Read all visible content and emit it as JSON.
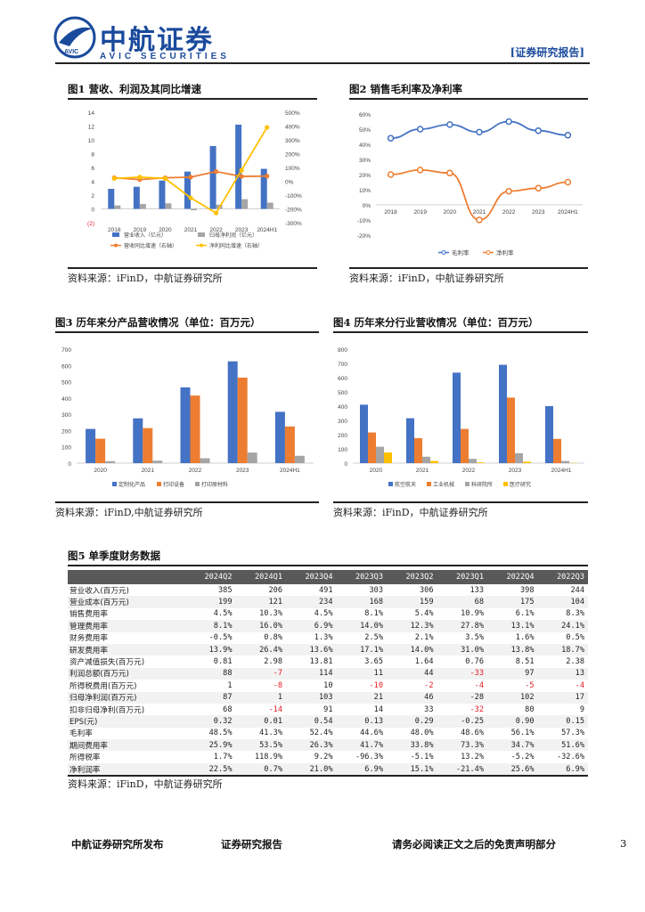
{
  "header": {
    "brand_cn": "中航证券",
    "brand_en": "AVIC SECURITIES",
    "logo_text": "AVIC",
    "report_tag": "[证券研究报告]"
  },
  "figure1": {
    "title": "图1 营收、利润及其同比增速",
    "source": "资料来源：iFinD，中航证券研究所",
    "chart_data": {
      "type": "bar",
      "categories": [
        "2018",
        "2019",
        "2020",
        "2021",
        "2022",
        "2023",
        "2024H1"
      ],
      "series": [
        {
          "name": "营业收入（亿元）",
          "kind": "bar",
          "axis": "left",
          "color": "#4472c4",
          "values": [
            2.9,
            3.2,
            4.1,
            5.4,
            9.1,
            12.2,
            5.8
          ]
        },
        {
          "name": "归母净利润（亿元）",
          "kind": "bar",
          "axis": "left",
          "color": "#a5a5a5",
          "values": [
            0.5,
            0.7,
            0.8,
            -0.2,
            0.6,
            1.4,
            0.9
          ]
        },
        {
          "name": "营收同比增速（右轴）",
          "kind": "line",
          "axis": "right",
          "color": "#ed7d31",
          "values": [
            25,
            12,
            25,
            30,
            70,
            35,
            37
          ]
        },
        {
          "name": "净利同比增速（右轴）",
          "kind": "line",
          "axis": "right",
          "color": "#ffc000",
          "values": [
            20,
            30,
            20,
            -120,
            -230,
            80,
            390
          ]
        }
      ],
      "yticks_left": [
        "14",
        "12",
        "10",
        "8",
        "6",
        "4",
        "2",
        "0",
        "(2)"
      ],
      "yticks_right": [
        "500%",
        "400%",
        "300%",
        "200%",
        "100%",
        "0%",
        "-100%",
        "-200%",
        "-300%"
      ],
      "ylim_left": [
        -2,
        14
      ],
      "ylim_right": [
        -300,
        500
      ]
    }
  },
  "figure2": {
    "title": "图2 销售毛利率及净利率",
    "source": "资料来源：iFinD，中航证券研究所",
    "chart_data": {
      "type": "line",
      "categories": [
        "2018",
        "2019",
        "2020",
        "2021",
        "2022",
        "2023",
        "2024H1"
      ],
      "series": [
        {
          "name": "毛利率",
          "color": "#4472c4",
          "values": [
            44,
            50,
            53,
            48,
            55,
            49,
            46
          ]
        },
        {
          "name": "净利率",
          "color": "#ed7d31",
          "values": [
            20,
            23,
            21,
            -10,
            9,
            11,
            15
          ]
        }
      ],
      "yticks": [
        "60%",
        "50%",
        "40%",
        "30%",
        "20%",
        "10%",
        "0%",
        "-10%",
        "-20%"
      ],
      "ylim": [
        -20,
        60
      ]
    }
  },
  "figure3": {
    "title": "图3 历年来分产品营收情况（单位：百万元）",
    "source": "资料来源：iFinD,中航证券研究所",
    "chart_data": {
      "type": "bar",
      "categories": [
        "2020",
        "2021",
        "2022",
        "2023",
        "2024H1"
      ],
      "series": [
        {
          "name": "定制化产品",
          "color": "#4472c4",
          "values": [
            210,
            275,
            465,
            625,
            315
          ]
        },
        {
          "name": "打印设备",
          "color": "#ed7d31",
          "values": [
            150,
            215,
            415,
            525,
            225
          ]
        },
        {
          "name": "打印原材料",
          "color": "#a5a5a5",
          "values": [
            12,
            15,
            30,
            65,
            45
          ]
        }
      ],
      "yticks": [
        "700",
        "600",
        "500",
        "400",
        "300",
        "200",
        "100",
        "0"
      ],
      "ylim": [
        0,
        700
      ]
    }
  },
  "figure4": {
    "title": "图4 历年来分行业营收情况（单位：百万元）",
    "source": "资料来源：iFinD，中航证券研究所",
    "chart_data": {
      "type": "bar",
      "categories": [
        "2020",
        "2021",
        "2022",
        "2023",
        "2024H1"
      ],
      "series": [
        {
          "name": "航空航天",
          "color": "#4472c4",
          "values": [
            410,
            315,
            635,
            690,
            400
          ]
        },
        {
          "name": "工业机械",
          "color": "#ed7d31",
          "values": [
            215,
            175,
            240,
            460,
            170
          ]
        },
        {
          "name": "科研院所",
          "color": "#a5a5a5",
          "values": [
            115,
            45,
            30,
            70,
            15
          ]
        },
        {
          "name": "医疗研究",
          "color": "#ffc000",
          "values": [
            75,
            15,
            5,
            10,
            2
          ]
        }
      ],
      "yticks": [
        "800",
        "700",
        "600",
        "500",
        "400",
        "300",
        "200",
        "100",
        "0"
      ],
      "ylim": [
        0,
        800
      ]
    }
  },
  "figure5": {
    "title": "图5 单季度财务数据",
    "source": "资料来源：iFinD，中航证券研究所",
    "columns": [
      "",
      "2024Q2",
      "2024Q1",
      "2023Q4",
      "2023Q3",
      "2023Q2",
      "2023Q1",
      "2022Q4",
      "2022Q3"
    ],
    "rows": [
      [
        "营业收入(百万元)",
        "385",
        "206",
        "491",
        "303",
        "306",
        "133",
        "398",
        "244"
      ],
      [
        "营业成本(百万元)",
        "199",
        "121",
        "234",
        "168",
        "159",
        "68",
        "175",
        "104"
      ],
      [
        "销售费用率",
        "4.5%",
        "10.3%",
        "4.5%",
        "8.1%",
        "5.4%",
        "10.9%",
        "6.1%",
        "8.3%"
      ],
      [
        "管理费用率",
        "8.1%",
        "16.0%",
        "6.9%",
        "14.0%",
        "12.3%",
        "27.8%",
        "13.1%",
        "24.1%"
      ],
      [
        "财务费用率",
        "-0.5%",
        "0.8%",
        "1.3%",
        "2.5%",
        "2.1%",
        "3.5%",
        "1.6%",
        "0.5%"
      ],
      [
        "研发费用率",
        "13.9%",
        "26.4%",
        "13.6%",
        "17.1%",
        "14.0%",
        "31.0%",
        "13.8%",
        "18.7%"
      ],
      [
        "资产减值损失(百万元)",
        "0.81",
        "2.98",
        "13.81",
        "3.65",
        "1.64",
        "0.76",
        "8.51",
        "2.38"
      ],
      [
        "利润总额(百万元)",
        "88",
        "-7",
        "114",
        "11",
        "44",
        "-33",
        "97",
        "13"
      ],
      [
        "所得税费用(百万元)",
        "1",
        "-8",
        "10",
        "-10",
        "-2",
        "-4",
        "-5",
        "-4"
      ],
      [
        "归母净利润(百万元)",
        "87",
        "1",
        "103",
        "21",
        "46",
        "-28",
        "102",
        "17"
      ],
      [
        "扣非归母净利(百万元)",
        "68",
        "-14",
        "91",
        "14",
        "33",
        "-32",
        "80",
        "9"
      ],
      [
        "EPS(元)",
        "0.32",
        "0.01",
        "0.54",
        "0.13",
        "0.29",
        "-0.25",
        "0.90",
        "0.15"
      ],
      [
        "毛利率",
        "48.5%",
        "41.3%",
        "52.4%",
        "44.6%",
        "48.0%",
        "48.6%",
        "56.1%",
        "57.3%"
      ],
      [
        "期间费用率",
        "25.9%",
        "53.5%",
        "26.3%",
        "41.7%",
        "33.8%",
        "73.3%",
        "34.7%",
        "51.6%"
      ],
      [
        "所得税率",
        "1.7%",
        "118.9%",
        "9.2%",
        "-96.3%",
        "-5.1%",
        "13.2%",
        "-5.2%",
        "-32.6%"
      ],
      [
        "净利润率",
        "22.5%",
        "0.7%",
        "21.0%",
        "6.9%",
        "15.1%",
        "-21.4%",
        "25.6%",
        "6.9%"
      ]
    ]
  },
  "footer": {
    "left": "中航证券研究所发布",
    "center": "证券研究报告",
    "right": "请务必阅读正文之后的免责声明部分",
    "page": "3"
  }
}
